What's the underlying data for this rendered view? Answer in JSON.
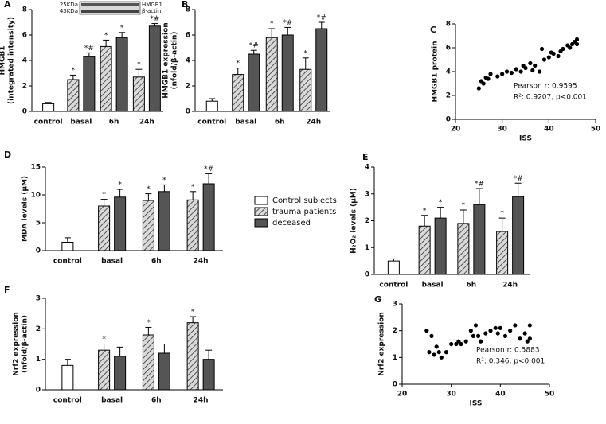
{
  "chart_data": [
    {
      "type": "bar",
      "panel": "A",
      "ylabel": [
        "HMGB1",
        "(integrated intensity)"
      ],
      "categories": [
        "control",
        "basal",
        "6h",
        "24h"
      ],
      "ylim": [
        0,
        8
      ],
      "yticks": [
        0,
        2,
        4,
        6,
        8
      ],
      "inset": {
        "labels_left": [
          "25KDa",
          "43KDa"
        ],
        "labels_right": [
          "HMGB1",
          "β-actin"
        ]
      },
      "series": [
        {
          "color": "#ffffff",
          "values": [
            0.6,
            null,
            null,
            null
          ],
          "errors": [
            0.1,
            null,
            null,
            null
          ],
          "annotations": [
            null,
            null,
            null,
            null
          ]
        },
        {
          "color": "#d9d9d9",
          "hatch": true,
          "values": [
            null,
            2.5,
            5.1,
            2.7
          ],
          "errors": [
            null,
            0.35,
            0.5,
            0.6
          ],
          "annotations": [
            null,
            "*",
            "*",
            "*"
          ]
        },
        {
          "color": "#555555",
          "values": [
            null,
            4.3,
            5.8,
            6.7
          ],
          "errors": [
            null,
            0.3,
            0.4,
            0.2
          ],
          "annotations": [
            null,
            "*#",
            "*",
            "*#"
          ]
        }
      ]
    },
    {
      "type": "bar",
      "panel": "B",
      "ylabel": [
        "HMGB1 expression",
        "(nfold/β-actin)"
      ],
      "categories": [
        "control",
        "basal",
        "6h",
        "24h"
      ],
      "ylim": [
        0,
        8
      ],
      "yticks": [
        0,
        2,
        4,
        6,
        8
      ],
      "series": [
        {
          "color": "#ffffff",
          "values": [
            0.8,
            null,
            null,
            null
          ],
          "errors": [
            0.2,
            null,
            null,
            null
          ],
          "annotations": [
            null,
            null,
            null,
            null
          ]
        },
        {
          "color": "#d9d9d9",
          "hatch": true,
          "values": [
            null,
            2.9,
            5.8,
            3.3
          ],
          "errors": [
            null,
            0.5,
            0.7,
            0.9
          ],
          "annotations": [
            null,
            "*",
            "*",
            "*"
          ]
        },
        {
          "color": "#555555",
          "values": [
            null,
            4.5,
            6.0,
            6.5
          ],
          "errors": [
            null,
            0.3,
            0.6,
            0.5
          ],
          "annotations": [
            null,
            "*#",
            "*#",
            "*#"
          ]
        }
      ]
    },
    {
      "type": "scatter",
      "panel": "C",
      "xlabel": "ISS",
      "ylabel": [
        "HMGB1 protein"
      ],
      "xlim": [
        20,
        50
      ],
      "xticks": [
        20,
        30,
        40,
        50
      ],
      "ylim": [
        0,
        8
      ],
      "yticks": [
        0,
        2,
        4,
        6,
        8
      ],
      "color": "#000000",
      "annotations": [
        "Pearson r: 0.9595",
        "R²: 0.9207, p<0.001"
      ],
      "x": [
        25,
        25.5,
        26,
        26.5,
        27,
        27.5,
        29,
        30,
        31,
        32,
        33,
        34,
        34.5,
        35,
        36,
        36.5,
        37,
        38,
        38.5,
        39,
        40,
        40.5,
        41,
        42,
        42.5,
        43,
        44,
        44.5,
        45,
        45.5,
        46,
        46
      ],
      "y": [
        2.6,
        3.2,
        3.0,
        3.5,
        3.4,
        3.8,
        3.6,
        3.8,
        4.0,
        3.9,
        4.2,
        4.0,
        4.5,
        4.3,
        4.7,
        4.1,
        4.5,
        4.0,
        5.9,
        5.0,
        5.2,
        5.6,
        5.5,
        5.3,
        5.7,
        5.9,
        6.2,
        6.0,
        6.3,
        6.5,
        6.7,
        6.3
      ]
    },
    {
      "type": "bar",
      "panel": "D",
      "ylabel": [
        "MDA levels (μM)"
      ],
      "categories": [
        "control",
        "basal",
        "6h",
        "24h"
      ],
      "ylim": [
        0,
        15
      ],
      "yticks": [
        0,
        5,
        10,
        15
      ],
      "series": [
        {
          "name": "Control subjects",
          "color": "#ffffff",
          "values": [
            1.5,
            null,
            null,
            null
          ],
          "errors": [
            0.8,
            null,
            null,
            null
          ],
          "annotations": [
            null,
            null,
            null,
            null
          ]
        },
        {
          "name": "trauma patients",
          "color": "#d9d9d9",
          "hatch": true,
          "values": [
            null,
            8,
            9,
            9.1
          ],
          "errors": [
            null,
            1.2,
            1.2,
            1.5
          ],
          "annotations": [
            null,
            "*",
            "*",
            "*"
          ]
        },
        {
          "name": "deceased",
          "color": "#555555",
          "values": [
            null,
            9.6,
            10.6,
            12
          ],
          "errors": [
            null,
            1.4,
            1.2,
            1.8
          ],
          "annotations": [
            null,
            "*",
            "*",
            "*#"
          ]
        }
      ]
    },
    {
      "type": "bar",
      "panel": "E",
      "ylabel": [
        "H₂O₂ levels (μM)"
      ],
      "categories": [
        "control",
        "basal",
        "6h",
        "24h"
      ],
      "ylim": [
        0,
        4
      ],
      "yticks": [
        0,
        1,
        2,
        3,
        4
      ],
      "series": [
        {
          "color": "#ffffff",
          "values": [
            0.5,
            null,
            null,
            null
          ],
          "errors": [
            0.08,
            null,
            null,
            null
          ],
          "annotations": [
            null,
            null,
            null,
            null
          ]
        },
        {
          "color": "#d9d9d9",
          "hatch": true,
          "values": [
            null,
            1.8,
            1.9,
            1.6
          ],
          "errors": [
            null,
            0.4,
            0.5,
            0.5
          ],
          "annotations": [
            null,
            "*",
            "*",
            "*"
          ]
        },
        {
          "color": "#555555",
          "values": [
            null,
            2.1,
            2.6,
            2.9
          ],
          "errors": [
            null,
            0.4,
            0.6,
            0.5
          ],
          "annotations": [
            null,
            "*",
            "*#",
            "*#"
          ]
        }
      ]
    },
    {
      "type": "bar",
      "panel": "F",
      "ylabel": [
        "Nrf2 expression",
        "(nfold/β-actin)"
      ],
      "categories": [
        "control",
        "basal",
        "6h",
        "24h"
      ],
      "ylim": [
        0,
        3
      ],
      "yticks": [
        0,
        1,
        2,
        3
      ],
      "series": [
        {
          "color": "#ffffff",
          "values": [
            0.8,
            null,
            null,
            null
          ],
          "errors": [
            0.2,
            null,
            null,
            null
          ],
          "annotations": [
            null,
            null,
            null,
            null
          ]
        },
        {
          "color": "#d9d9d9",
          "hatch": true,
          "values": [
            null,
            1.3,
            1.8,
            2.2
          ],
          "errors": [
            null,
            0.2,
            0.25,
            0.2
          ],
          "annotations": [
            null,
            "*",
            "*",
            "*"
          ]
        },
        {
          "color": "#555555",
          "values": [
            null,
            1.1,
            1.2,
            1.0
          ],
          "errors": [
            null,
            0.3,
            0.3,
            0.3
          ],
          "annotations": [
            null,
            null,
            null,
            null
          ]
        }
      ]
    },
    {
      "type": "scatter",
      "panel": "G",
      "xlabel": "ISS",
      "ylabel": [
        "Nrf2 expression"
      ],
      "xlim": [
        20,
        50
      ],
      "xticks": [
        20,
        30,
        40,
        50
      ],
      "ylim": [
        0,
        3
      ],
      "yticks": [
        0,
        1,
        2,
        3
      ],
      "color": "#000000",
      "annotations": [
        "Pearson r: 0.5883",
        "R²: 0.346, p<0.001"
      ],
      "x": [
        25,
        25.5,
        26,
        26.5,
        27,
        27.5,
        28,
        29,
        30,
        31,
        31.5,
        32,
        33,
        34,
        34.5,
        35,
        35.5,
        36,
        37,
        38,
        39,
        39.5,
        40,
        41,
        42,
        43,
        44,
        45,
        45.5,
        46,
        46
      ],
      "y": [
        2.0,
        1.2,
        1.8,
        1.1,
        1.4,
        1.2,
        1.0,
        1.2,
        1.5,
        1.5,
        1.6,
        1.5,
        1.6,
        2.0,
        1.8,
        2.2,
        1.8,
        1.6,
        1.9,
        2.0,
        2.1,
        1.9,
        2.1,
        1.8,
        2.0,
        2.2,
        1.7,
        1.9,
        1.6,
        1.7,
        2.2
      ]
    }
  ]
}
